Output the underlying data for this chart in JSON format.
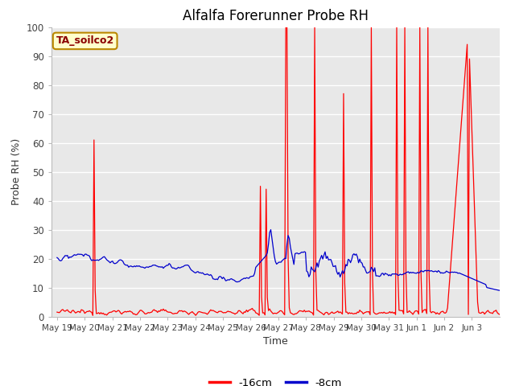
{
  "title": "Alfalfa Forerunner Probe RH",
  "ylabel": "Probe RH (%)",
  "xlabel": "Time",
  "ylim": [
    0,
    100
  ],
  "bg_color": "#e8e8e8",
  "annotation_text": "TA_soilco2",
  "annotation_bg": "#ffffcc",
  "annotation_border": "#bb8800",
  "annotation_text_color": "#8b0000",
  "series_16cm_color": "#ff0000",
  "series_8cm_color": "#0000cc",
  "xtick_labels": [
    "May 19",
    "May 20",
    "May 21",
    "May 22",
    "May 23",
    "May 24",
    "May 25",
    "May 26",
    "May 27",
    "May 28",
    "May 29",
    "May 30",
    "May 31",
    "Jun 1",
    "Jun 2",
    "Jun 3"
  ],
  "tick_label_fontsize": 7.5,
  "title_fontsize": 12
}
